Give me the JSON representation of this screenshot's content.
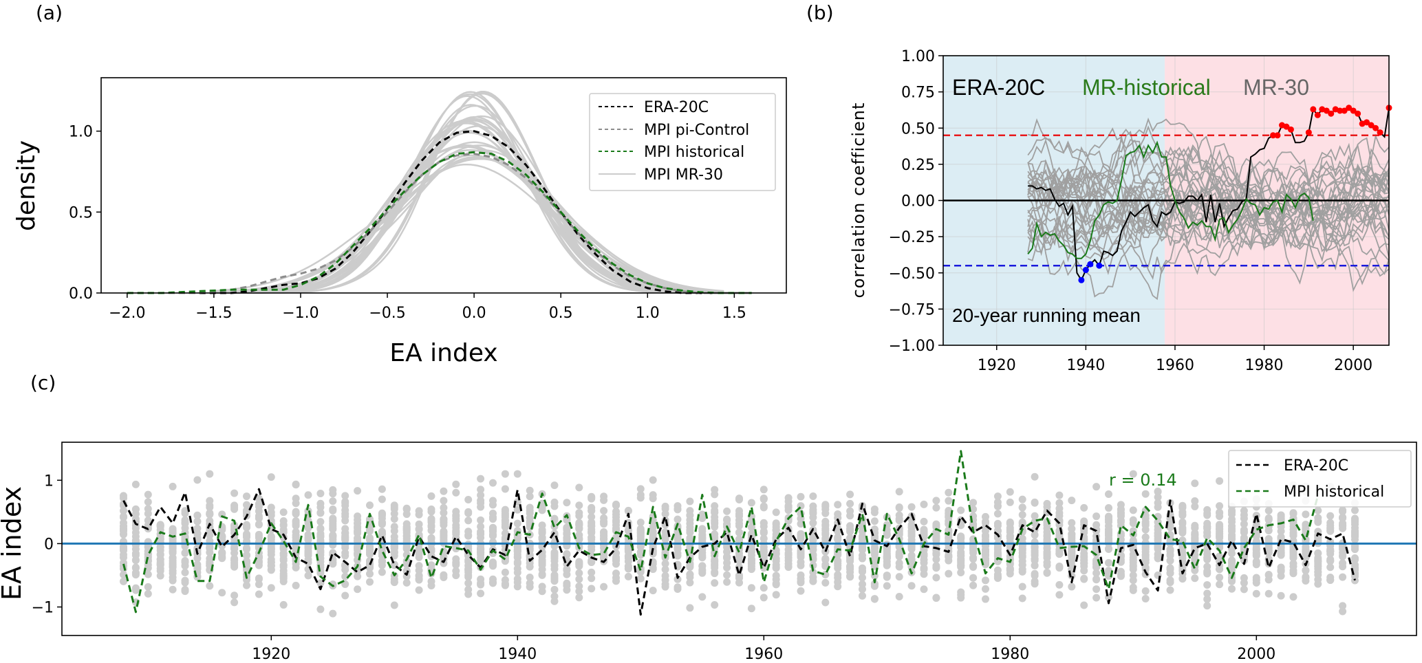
{
  "figure": {
    "panel_labels": [
      "(a)",
      "(b)",
      "(c)"
    ]
  },
  "chart_data": [
    {
      "panel": "(a)",
      "type": "line",
      "title": "",
      "xlabel": "EA index",
      "ylabel": "density",
      "xlim": [
        -2.15,
        1.8
      ],
      "ylim": [
        0.0,
        1.33
      ],
      "xticks": [
        -2.0,
        -1.5,
        -1.0,
        -0.5,
        0.0,
        0.5,
        1.0,
        1.5
      ],
      "xtick_labels": [
        "−2.0",
        "−1.5",
        "−1.0",
        "−0.5",
        "0.0",
        "0.5",
        "1.0",
        "1.5"
      ],
      "yticks": [
        0.0,
        0.5,
        1.0
      ],
      "ytick_labels": [
        "0.0",
        "0.5",
        "1.0"
      ],
      "grid": false,
      "legend": {
        "placement": "top-right",
        "entries": [
          {
            "label": "ERA-20C",
            "style": "dashed",
            "color": "#000000"
          },
          {
            "label": "MPI pi-Control",
            "style": "dashed",
            "color": "#8c8c8c"
          },
          {
            "label": "MPI historical",
            "style": "dashed",
            "color": "#1a7a1a"
          },
          {
            "label": "MPI MR-30",
            "style": "solid",
            "color": "#cccccc"
          }
        ]
      },
      "x": [
        -2.0,
        -1.9,
        -1.8,
        -1.7,
        -1.6,
        -1.5,
        -1.4,
        -1.3,
        -1.2,
        -1.1,
        -1.0,
        -0.9,
        -0.8,
        -0.7,
        -0.6,
        -0.5,
        -0.4,
        -0.3,
        -0.2,
        -0.1,
        0.0,
        0.1,
        0.2,
        0.3,
        0.4,
        0.5,
        0.6,
        0.7,
        0.8,
        0.9,
        1.0,
        1.1,
        1.2,
        1.3,
        1.4,
        1.5,
        1.6
      ],
      "series": [
        {
          "name": "ERA-20C",
          "color": "#000000",
          "style": "dashed",
          "values": [
            0,
            0,
            0,
            0,
            0,
            0,
            0,
            0.01,
            0.03,
            0.05,
            0.06,
            0.09,
            0.15,
            0.25,
            0.38,
            0.52,
            0.68,
            0.82,
            0.93,
            0.99,
            1.0,
            0.97,
            0.9,
            0.79,
            0.65,
            0.5,
            0.36,
            0.24,
            0.14,
            0.07,
            0.03,
            0.01,
            0,
            0,
            0,
            0,
            0
          ]
        },
        {
          "name": "MPI pi-Control",
          "color": "#8c8c8c",
          "style": "dashed",
          "values": [
            0,
            0,
            0,
            0,
            0,
            0.01,
            0.02,
            0.04,
            0.07,
            0.1,
            0.12,
            0.15,
            0.2,
            0.28,
            0.38,
            0.5,
            0.62,
            0.73,
            0.81,
            0.85,
            0.86,
            0.84,
            0.79,
            0.71,
            0.61,
            0.49,
            0.37,
            0.26,
            0.17,
            0.1,
            0.06,
            0.03,
            0.01,
            0,
            0,
            0,
            0
          ]
        },
        {
          "name": "MPI historical",
          "color": "#1a7a1a",
          "style": "dashed",
          "values": [
            0,
            0,
            0,
            0.005,
            0.01,
            0.015,
            0.02,
            0.02,
            0.02,
            0.02,
            0.05,
            0.1,
            0.18,
            0.29,
            0.4,
            0.52,
            0.63,
            0.73,
            0.81,
            0.86,
            0.87,
            0.86,
            0.81,
            0.73,
            0.62,
            0.5,
            0.38,
            0.27,
            0.18,
            0.11,
            0.06,
            0.03,
            0.015,
            0.005,
            0,
            0,
            0
          ]
        }
      ],
      "ensemble": {
        "name": "MPI MR-30",
        "color": "#cccccc",
        "members": 30,
        "peak_range": [
          0.78,
          1.27
        ]
      }
    },
    {
      "panel": "(b)",
      "type": "line",
      "title": "",
      "xlabel": "",
      "ylabel": "correlation coefficient",
      "xlim": [
        1908,
        2008
      ],
      "ylim": [
        -1.0,
        1.0
      ],
      "xticks": [
        1920,
        1940,
        1960,
        1980,
        2000
      ],
      "xtick_labels": [
        "1920",
        "1940",
        "1960",
        "1980",
        "2000"
      ],
      "yticks": [
        1.0,
        0.75,
        0.5,
        0.25,
        0.0,
        -0.25,
        -0.5,
        -0.75,
        -1.0
      ],
      "ytick_labels": [
        "1.00",
        "0.75",
        "0.50",
        "0.25",
        "0.00",
        "−0.25",
        "−0.50",
        "−0.75",
        "−1.00"
      ],
      "grid": true,
      "background_regions": [
        {
          "from": 1908,
          "to": 1957.7,
          "color": "#dcedf4"
        },
        {
          "from": 1957.7,
          "to": 2008,
          "color": "#fde0e5"
        }
      ],
      "annotations": [
        {
          "text": "ERA-20C",
          "color": "#000000",
          "placement": "top-left"
        },
        {
          "text": "MR-historical",
          "color": "#2a7a1a",
          "placement": "top-left"
        },
        {
          "text": "MR-30",
          "color": "#666666",
          "placement": "top-left"
        },
        {
          "text": "20-year running mean",
          "color": "#000000",
          "placement": "bottom-left"
        }
      ],
      "reference_lines": [
        {
          "y": 0.45,
          "color": "#e8191b",
          "style": "dashed"
        },
        {
          "y": -0.45,
          "color": "#1a1adc",
          "style": "dashed"
        },
        {
          "y": 0.0,
          "color": "#000000",
          "style": "solid"
        }
      ],
      "series": [
        {
          "name": "ERA-20C",
          "color": "#000000",
          "x": [
            1927,
            1928,
            1929,
            1930,
            1931,
            1932,
            1933,
            1934,
            1935,
            1936,
            1937,
            1938,
            1939,
            1940,
            1941,
            1942,
            1943,
            1944,
            1945,
            1946,
            1947,
            1948,
            1949,
            1950,
            1951,
            1952,
            1953,
            1954,
            1955,
            1956,
            1957,
            1958,
            1959,
            1960,
            1961,
            1962,
            1963,
            1964,
            1965,
            1966,
            1967,
            1968,
            1969,
            1970,
            1971,
            1972,
            1973,
            1974,
            1975,
            1976,
            1977,
            1978,
            1979,
            1980,
            1981,
            1982,
            1983,
            1984,
            1985,
            1986,
            1987,
            1988,
            1989,
            1990,
            1991,
            1992,
            1993,
            1994,
            1995,
            1996,
            1997,
            1998,
            1999,
            2000,
            2001,
            2002,
            2003,
            2004,
            2005,
            2006,
            2007,
            2008
          ],
          "values": [
            0.1,
            0.1,
            0.08,
            0.09,
            0.07,
            0.08,
            0.01,
            -0.04,
            -0.02,
            -0.1,
            -0.04,
            -0.5,
            -0.55,
            -0.48,
            -0.44,
            -0.41,
            -0.45,
            -0.35,
            -0.36,
            -0.38,
            -0.35,
            -0.21,
            -0.15,
            -0.08,
            -0.11,
            -0.08,
            -0.05,
            -0.03,
            -0.14,
            -0.18,
            -0.08,
            -0.1,
            -0.08,
            -0.01,
            -0.02,
            -0.01,
            0.03,
            0.03,
            0.0,
            0.04,
            -0.15,
            0.04,
            -0.15,
            -0.02,
            -0.18,
            -0.12,
            -0.07,
            -0.06,
            -0.01,
            0.01,
            0.3,
            0.32,
            0.35,
            0.36,
            0.43,
            0.45,
            0.45,
            0.52,
            0.51,
            0.49,
            0.4,
            0.4,
            0.41,
            0.47,
            0.63,
            0.59,
            0.63,
            0.62,
            0.6,
            0.63,
            0.62,
            0.62,
            0.64,
            0.62,
            0.6,
            0.53,
            0.54,
            0.52,
            0.5,
            0.47,
            0.44,
            0.64
          ]
        },
        {
          "name": "MR-historical",
          "color": "#1a7a1a",
          "x": [
            1927,
            1928,
            1929,
            1930,
            1931,
            1932,
            1933,
            1934,
            1935,
            1936,
            1937,
            1938,
            1939,
            1940,
            1941,
            1942,
            1943,
            1944,
            1945,
            1946,
            1947,
            1948,
            1949,
            1950,
            1951,
            1952,
            1953,
            1954,
            1955,
            1956,
            1957,
            1958,
            1959,
            1960,
            1961,
            1962,
            1963,
            1964,
            1965,
            1966,
            1967,
            1968,
            1969,
            1970,
            1971,
            1972,
            1973,
            1974,
            1975,
            1976,
            1977,
            1978,
            1979,
            1980,
            1981,
            1982,
            1983,
            1984,
            1985,
            1986,
            1987,
            1988,
            1989,
            1990,
            1991
          ],
          "values": [
            -0.37,
            -0.33,
            -0.16,
            -0.25,
            -0.22,
            -0.24,
            -0.23,
            -0.28,
            -0.31,
            -0.36,
            -0.37,
            -0.4,
            -0.4,
            -0.37,
            -0.28,
            -0.14,
            -0.1,
            -0.03,
            -0.01,
            -0.02,
            0.0,
            0.14,
            0.31,
            0.33,
            0.34,
            0.38,
            0.3,
            0.38,
            0.33,
            0.4,
            0.3,
            0.3,
            0.1,
            0.0,
            -0.08,
            -0.12,
            -0.19,
            -0.15,
            -0.17,
            -0.14,
            -0.18,
            -0.18,
            -0.27,
            -0.13,
            -0.12,
            -0.22,
            -0.17,
            -0.13,
            -0.07,
            0.01,
            -0.02,
            -0.03,
            -0.1,
            -0.05,
            -0.06,
            -0.01,
            0.0,
            -0.08,
            0.04,
            0.01,
            -0.05,
            0.03,
            0.05,
            0.02,
            -0.14
          ]
        }
      ],
      "significant_points": {
        "positive": {
          "color": "#ff0000",
          "years": [
            1982,
            1983,
            1984,
            1985,
            1986,
            1990,
            1991,
            1992,
            1993,
            1994,
            1995,
            1996,
            1997,
            1998,
            1999,
            2000,
            2001,
            2002,
            2003,
            2004,
            2005,
            2006,
            2008
          ]
        },
        "negative": {
          "color": "#0000ff",
          "years": [
            1939,
            1940,
            1941,
            1943
          ]
        }
      },
      "ensemble": {
        "name": "MR-30",
        "color": "#a0a0a0",
        "members": 30,
        "x_range": [
          1927,
          2008
        ],
        "value_range": [
          -0.68,
          0.56
        ]
      }
    },
    {
      "panel": "(c)",
      "type": "line",
      "title": "",
      "xlabel": "",
      "ylabel": "EA index",
      "xlim": [
        1903,
        2013
      ],
      "ylim": [
        -1.45,
        1.6
      ],
      "xticks": [
        1920,
        1940,
        1960,
        1980,
        2000
      ],
      "xtick_labels": [
        "1920",
        "1940",
        "1960",
        "1980",
        "2000"
      ],
      "yticks": [
        1,
        0,
        -1
      ],
      "ytick_labels": [
        "1",
        "0",
        "−1"
      ],
      "grid": false,
      "legend": {
        "placement": "top-right",
        "entries": [
          {
            "label": "ERA-20C",
            "style": "dashed",
            "color": "#000000"
          },
          {
            "label": "MPI historical",
            "style": "dashed",
            "color": "#1a7a1a"
          }
        ]
      },
      "annotations": [
        {
          "text": "r = 0.14",
          "color": "#1a7a1a",
          "placement": "top-right"
        }
      ],
      "reference_lines": [
        {
          "y": 0,
          "color": "#1f77b4",
          "style": "solid"
        }
      ],
      "x_start": 1908,
      "series": [
        {
          "name": "ERA-20C",
          "color": "#000000",
          "style": "dashed",
          "values": [
            0.68,
            0.31,
            0.23,
            0.58,
            0.32,
            0.81,
            -0.16,
            0.31,
            -0.05,
            0.14,
            0.43,
            0.86,
            0.23,
            0.14,
            -0.22,
            -0.32,
            -0.72,
            -0.14,
            -0.29,
            -0.45,
            -0.34,
            0.13,
            -0.34,
            -0.49,
            0.11,
            -0.2,
            -0.29,
            0.11,
            -0.18,
            -0.38,
            -0.09,
            -0.18,
            0.85,
            -0.27,
            -0.1,
            0.18,
            -0.36,
            -0.11,
            -0.22,
            -0.29,
            -0.07,
            0.47,
            -1.12,
            -0.07,
            0.43,
            -0.54,
            -0.22,
            -0.05,
            0.0,
            0.18,
            -0.5,
            0.14,
            -0.38,
            0.07,
            0.25,
            -0.09,
            0.23,
            -0.13,
            0.38,
            -0.2,
            0.63,
            0.05,
            -0.04,
            0.25,
            0.47,
            -0.04,
            -0.07,
            -0.13,
            0.43,
            0.18,
            0.29,
            0.14,
            -0.18,
            0.29,
            0.18,
            0.52,
            0.32,
            -0.61,
            0.29,
            0.2,
            -0.94,
            -0.07,
            -0.02,
            -0.45,
            -0.74,
            0.68,
            -0.47,
            -0.07,
            0.0,
            -0.34,
            0.05,
            -0.32,
            0.47,
            -0.38,
            0.07,
            0.02,
            -0.34,
            0.16,
            0.07,
            0.16,
            -0.58
          ]
        },
        {
          "name": "MPI historical",
          "color": "#1a7a1a",
          "style": "dashed",
          "values": [
            -0.32,
            -1.08,
            -0.18,
            0.18,
            0.11,
            0.16,
            -0.59,
            -0.59,
            0.43,
            0.36,
            -0.54,
            -0.14,
            0.32,
            0.04,
            -0.29,
            0.61,
            -0.52,
            -0.67,
            -0.58,
            -0.36,
            0.47,
            -0.11,
            -0.5,
            -0.25,
            0.14,
            -0.54,
            -0.04,
            -0.07,
            -0.11,
            -0.41,
            -0.11,
            -0.25,
            0.18,
            0.14,
            0.79,
            0.25,
            0.45,
            -0.07,
            -0.18,
            -0.16,
            0.18,
            0.11,
            -0.43,
            0.58,
            -0.22,
            0.31,
            -0.29,
            0.77,
            -0.2,
            0.27,
            -0.14,
            0.58,
            -0.61,
            0.04,
            0.4,
            0.58,
            -0.43,
            -0.49,
            -0.09,
            -0.11,
            0.47,
            -0.61,
            0.47,
            0.07,
            -0.47,
            0.0,
            0.23,
            0.14,
            1.46,
            0.2,
            -0.47,
            -0.23,
            -0.29,
            0.23,
            0.36,
            0.4,
            -0.07,
            -0.05,
            -0.04,
            -0.18,
            -0.72,
            0.29,
            0.13,
            0.58,
            0.36,
            0.07,
            0.04,
            -0.4,
            0.09,
            -0.11,
            -0.54,
            -0.07,
            0.22,
            0.29,
            0.32,
            0.38,
            0.05,
            0.76
          ]
        }
      ],
      "ensemble_scatter": {
        "name": "MPI MR-30 members",
        "color": "#cccccc",
        "members": 30,
        "value_range": [
          -1.3,
          1.1
        ]
      }
    }
  ]
}
